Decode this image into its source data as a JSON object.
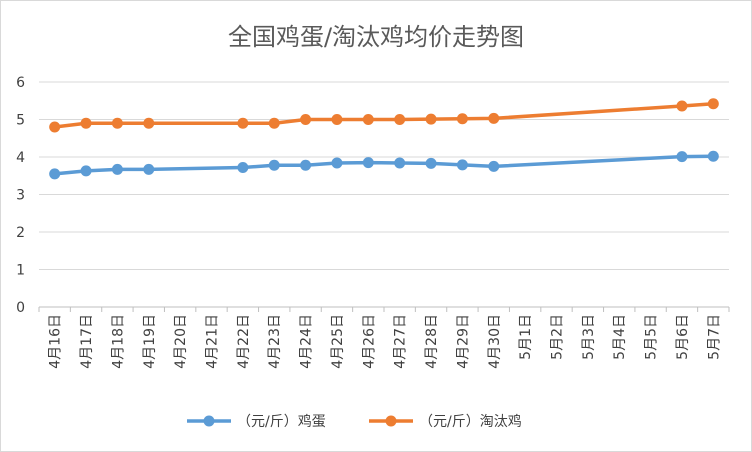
{
  "chart_data": {
    "type": "line",
    "title": "全国鸡蛋/淘汰鸡均价走势图",
    "xlabel": "",
    "ylabel": "",
    "ylim": [
      0,
      6
    ],
    "yticks": [
      0,
      1,
      2,
      3,
      4,
      5,
      6
    ],
    "grid": true,
    "legend_position": "bottom",
    "categories": [
      "4月16日",
      "4月17日",
      "4月18日",
      "4月19日",
      "4月20日",
      "4月21日",
      "4月22日",
      "4月23日",
      "4月24日",
      "4月25日",
      "4月26日",
      "4月27日",
      "4月28日",
      "4月29日",
      "4月30日",
      "5月1日",
      "5月2日",
      "5月3日",
      "5月4日",
      "5月5日",
      "5月6日",
      "5月7日"
    ],
    "series": [
      {
        "name": "（元/斤）鸡蛋",
        "color": "#5b9bd5",
        "values": [
          3.55,
          3.63,
          3.67,
          3.67,
          null,
          null,
          3.72,
          3.78,
          3.78,
          3.84,
          3.85,
          3.84,
          3.83,
          3.79,
          3.75,
          null,
          null,
          null,
          null,
          null,
          4.01,
          4.02
        ]
      },
      {
        "name": "（元/斤）淘汰鸡",
        "color": "#ed7d31",
        "values": [
          4.8,
          4.9,
          4.9,
          4.9,
          null,
          null,
          4.9,
          4.9,
          5.0,
          5.0,
          5.0,
          5.0,
          5.01,
          5.02,
          5.03,
          null,
          null,
          null,
          null,
          null,
          5.36,
          5.42
        ]
      }
    ]
  }
}
